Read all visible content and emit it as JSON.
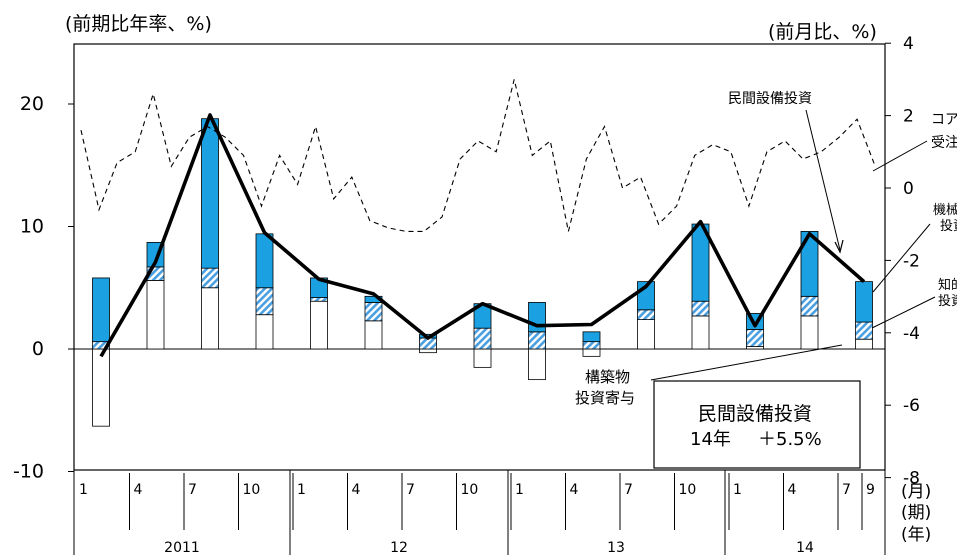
{
  "chart_data": {
    "type": "bar+line",
    "left_axis": {
      "label": "(前期比年率、%)",
      "ticks": [
        "20",
        "10",
        "0",
        "-10"
      ],
      "range": [
        -10,
        25
      ]
    },
    "right_axis": {
      "label": "(前月比、%)",
      "ticks": [
        "4",
        "2",
        "0",
        "-2",
        "-4",
        "-6",
        "-8"
      ],
      "range": [
        -8,
        4
      ]
    },
    "x_axis": {
      "month_ticks": [
        "1",
        "4",
        "7",
        "10",
        "1",
        "4",
        "7",
        "10",
        "1",
        "4",
        "7",
        "10",
        "1",
        "4",
        "7",
        "9"
      ],
      "year_labels": [
        "2011",
        "12",
        "13",
        "14"
      ],
      "unit_labels": [
        "(月)",
        "(期)",
        "(年)"
      ]
    },
    "quarters": [
      "2011Q1",
      "2011Q2",
      "2011Q3",
      "2011Q4",
      "2012Q1",
      "2012Q2",
      "2012Q3",
      "2012Q4",
      "2013Q1",
      "2013Q2",
      "2013Q3",
      "2013Q4",
      "2014Q1",
      "2014Q2",
      "2014Q3"
    ],
    "series": [
      {
        "name": "構築物投資寄与",
        "values": [
          -6.3,
          5.6,
          5.0,
          2.8,
          3.9,
          2.3,
          -0.3,
          -1.5,
          -2.5,
          -0.6,
          2.4,
          2.7,
          0.2,
          2.7,
          0.8
        ]
      },
      {
        "name": "知的財産投資寄与",
        "values": [
          0.6,
          1.1,
          1.6,
          2.2,
          0.3,
          1.5,
          0.9,
          1.7,
          1.4,
          0.6,
          0.8,
          1.2,
          1.4,
          1.6,
          1.4
        ]
      },
      {
        "name": "機械投資寄与",
        "values": [
          5.2,
          2.0,
          12.2,
          4.4,
          1.6,
          0.5,
          0.3,
          2.0,
          2.4,
          0.8,
          2.3,
          6.3,
          1.3,
          5.3,
          3.3
        ]
      },
      {
        "name": "民間設備投資",
        "values": [
          -0.6,
          7.1,
          19.1,
          9.5,
          5.7,
          4.5,
          0.9,
          3.7,
          1.9,
          2.0,
          5.1,
          10.4,
          1.9,
          9.4,
          5.5
        ]
      },
      {
        "name": "コア機械受注",
        "axis": "right",
        "values": [
          1.6,
          -0.6,
          0.7,
          1.0,
          2.6,
          0.6,
          1.4,
          1.7,
          1.4,
          0.9,
          -0.5,
          0.9,
          0.1,
          1.7,
          -0.3,
          0.3,
          -0.9,
          -1.1,
          -1.2,
          -1.2,
          -0.8,
          0.8,
          1.3,
          1.0,
          3.0,
          0.9,
          1.3,
          -1.2,
          0.8,
          1.7,
          0.0,
          0.3,
          -1.0,
          -0.5,
          0.9,
          1.2,
          1.0,
          -0.5,
          1.0,
          1.3,
          0.8,
          1.0,
          1.4,
          1.9,
          0.6
        ]
      }
    ],
    "annotations": [
      "民間設備投資",
      "コア機械受注",
      "機械投資",
      "知的財産投資",
      "構築物投資寄与"
    ],
    "info_box": {
      "line1": "民間設備投資",
      "line2": "14年 ＋5.5%"
    },
    "colors": {
      "machinery": "#1ba1e2",
      "ip": "#6cb4ee",
      "construction": "#ffffff",
      "line": "#000000"
    }
  },
  "labels": {
    "left_title": "(前期比年率、%)",
    "right_title": "(前月比、%)",
    "callout_total": "民間設備投資",
    "callout_core_1": "コア機械",
    "callout_core_2": "受注",
    "callout_mach_1": "機械",
    "callout_mach_2": "投資",
    "callout_ip_1": "知的",
    "callout_ip_2": "投資",
    "callout_cons_1": "構築物",
    "callout_cons_2": "投資寄与",
    "box_line1": "民間設備投資",
    "box_line2_a": "14年",
    "box_line2_b": "＋5.5%",
    "unit_month": "(月)",
    "unit_period": "(期)",
    "unit_year": "(年)"
  }
}
